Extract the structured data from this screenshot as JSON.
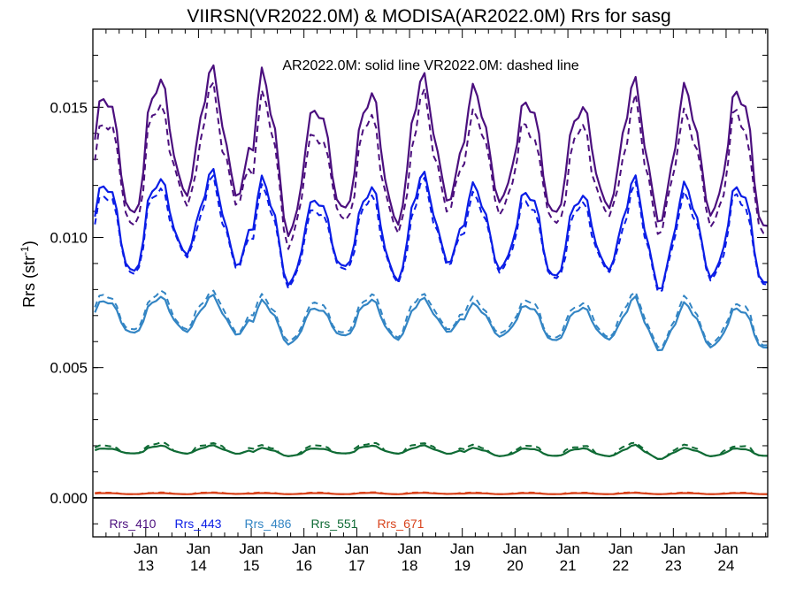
{
  "chart_data": {
    "type": "line",
    "title": "VIIRSN(VR2022.0M) & MODISA(AR2022.0M)  Rrs for sasg",
    "annotation": "AR2022.0M: solid line   VR2022.0M: dashed line",
    "ylabel": "Rrs (str",
    "ylabel_superscript": "-1",
    "ylabel_close": ")",
    "ylim": [
      -0.0015,
      0.018
    ],
    "yticks": [
      {
        "value": 0.0,
        "label": "0.000"
      },
      {
        "value": 0.005,
        "label": "0.005"
      },
      {
        "value": 0.01,
        "label": "0.010"
      },
      {
        "value": 0.015,
        "label": "0.015"
      }
    ],
    "xlim": [
      "2012-01-01",
      "2024-10-15"
    ],
    "xticks": [
      {
        "date": "2013-01-01",
        "month": "Jan",
        "year": "13"
      },
      {
        "date": "2014-01-01",
        "month": "Jan",
        "year": "14"
      },
      {
        "date": "2015-01-01",
        "month": "Jan",
        "year": "15"
      },
      {
        "date": "2016-01-01",
        "month": "Jan",
        "year": "16"
      },
      {
        "date": "2017-01-01",
        "month": "Jan",
        "year": "17"
      },
      {
        "date": "2018-01-01",
        "month": "Jan",
        "year": "18"
      },
      {
        "date": "2019-01-01",
        "month": "Jan",
        "year": "19"
      },
      {
        "date": "2020-01-01",
        "month": "Jan",
        "year": "20"
      },
      {
        "date": "2021-01-01",
        "month": "Jan",
        "year": "21"
      },
      {
        "date": "2022-01-01",
        "month": "Jan",
        "year": "22"
      },
      {
        "date": "2023-01-01",
        "month": "Jan",
        "year": "23"
      },
      {
        "date": "2024-01-01",
        "month": "Jan",
        "year": "24"
      }
    ],
    "zero_line": true,
    "series": [
      {
        "name": "Rrs_410",
        "color": "#4b0f7e",
        "seasonal": {
          "max": [
            0.0155,
            0.016,
            0.0163,
            0.0161,
            0.015,
            0.0155,
            0.016,
            0.0156,
            0.0153,
            0.015,
            0.0158,
            0.0156,
            0.0157
          ],
          "min": [
            0.0108,
            0.0117,
            0.0117,
            0.0101,
            0.011,
            0.0106,
            0.0115,
            0.0114,
            0.0108,
            0.0112,
            0.0107,
            0.0109,
            0.0102
          ]
        },
        "dashed_offset": [
          -0.0008,
          -0.0004
        ]
      },
      {
        "name": "Rrs_443",
        "color": "#0a1de6",
        "seasonal": {
          "max": [
            0.0121,
            0.0122,
            0.0124,
            0.0121,
            0.0115,
            0.0119,
            0.0123,
            0.0119,
            0.0118,
            0.0116,
            0.0121,
            0.0119,
            0.012
          ],
          "min": [
            0.0086,
            0.0094,
            0.009,
            0.0082,
            0.0088,
            0.0084,
            0.0091,
            0.0088,
            0.0084,
            0.0088,
            0.0081,
            0.0085,
            0.0081
          ]
        },
        "dashed_offset": [
          -0.0003,
          -0.0001
        ]
      },
      {
        "name": "Rrs_486",
        "color": "#3385c4",
        "seasonal": {
          "max": [
            0.0076,
            0.0077,
            0.0077,
            0.0075,
            0.0073,
            0.0076,
            0.0076,
            0.0074,
            0.0074,
            0.0073,
            0.0076,
            0.0074,
            0.0073
          ],
          "min": [
            0.0063,
            0.0064,
            0.0063,
            0.0059,
            0.0062,
            0.0061,
            0.0064,
            0.0062,
            0.006,
            0.0061,
            0.0057,
            0.0058,
            0.0057
          ]
        },
        "dashed_offset": [
          0.0002,
          0.0001
        ]
      },
      {
        "name": "Rrs_551",
        "color": "#0f6b35",
        "seasonal": {
          "max": [
            0.0019,
            0.002,
            0.002,
            0.0019,
            0.0019,
            0.002,
            0.002,
            0.0019,
            0.0019,
            0.0019,
            0.002,
            0.0019,
            0.0019
          ],
          "min": [
            0.0017,
            0.0017,
            0.0017,
            0.0016,
            0.0017,
            0.0017,
            0.0017,
            0.0016,
            0.0016,
            0.0016,
            0.0015,
            0.0016,
            0.0016
          ]
        },
        "dashed_offset": [
          0.0001,
          0.0
        ]
      },
      {
        "name": "Rrs_671",
        "color": "#d8431c",
        "seasonal": {
          "max": [
            0.00018,
            0.00018,
            0.00019,
            0.00018,
            0.00018,
            0.00019,
            0.00019,
            0.00018,
            0.00018,
            0.00018,
            0.00019,
            0.00018,
            0.00018
          ],
          "min": [
            0.00014,
            0.00014,
            0.00015,
            0.00014,
            0.00014,
            0.00014,
            0.00015,
            0.00014,
            0.00014,
            0.00014,
            0.00014,
            0.00014,
            0.00014
          ]
        },
        "dashed_offset": [
          2e-05,
          0.0
        ]
      }
    ],
    "legend_position": "bottom-left"
  }
}
